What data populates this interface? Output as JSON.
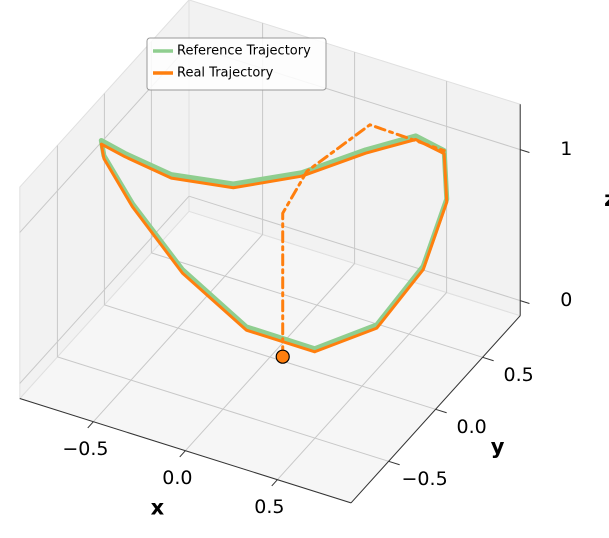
{
  "chart_data": {
    "type": "line3d",
    "xlabel": "x",
    "ylabel": "y",
    "zlabel": "z",
    "xlim": [
      -0.9,
      0.9
    ],
    "ylim": [
      -0.9,
      0.9
    ],
    "zlim": [
      -0.1,
      1.3
    ],
    "xticks": [
      {
        "value": -0.5,
        "label": "−0.5"
      },
      {
        "value": 0,
        "label": "0.0"
      },
      {
        "value": 0.5,
        "label": "0.5"
      }
    ],
    "yticks": [
      {
        "value": -0.5,
        "label": "−0.5"
      },
      {
        "value": 0,
        "label": "0.0"
      },
      {
        "value": 0.5,
        "label": "0.5"
      }
    ],
    "zticks": [
      0,
      1
    ],
    "grid": true,
    "legend": "upper left",
    "series": [
      {
        "name": "Reference Trajectory",
        "color": "#8fce8f",
        "linestyle": "solid",
        "x": [
          0.215,
          -0.079,
          -0.371,
          -0.617,
          -0.78,
          -0.835,
          -0.774,
          -0.605,
          -0.355,
          -0.061,
          0.231,
          0.477,
          0.64,
          0.695,
          0.634,
          0.465,
          0.215
        ],
        "y": [
          0.055,
          -0.097,
          -0.205,
          -0.256,
          -0.24,
          -0.16,
          -0.029,
          0.135,
          0.305,
          0.457,
          0.565,
          0.616,
          0.6,
          0.52,
          0.389,
          0.226,
          0.055
        ],
        "z": [
          0,
          0.137,
          0.478,
          0.856,
          1.1,
          1.124,
          0.972,
          0.783,
          0.7,
          0.783,
          0.972,
          1.124,
          1.1,
          0.856,
          0.478,
          0.137,
          0
        ]
      },
      {
        "name": "Real Trajectory",
        "color": "#ff7f0e",
        "linestyle": "solid",
        "x": [
          0.215,
          -0.079,
          -0.371,
          -0.617,
          -0.78,
          -0.835,
          -0.774,
          -0.605,
          -0.355,
          -0.061,
          0.231,
          0.477,
          0.64,
          0.695,
          0.634,
          0.465,
          0.215
        ],
        "y": [
          0.055,
          -0.097,
          -0.205,
          -0.256,
          -0.24,
          -0.16,
          -0.029,
          0.135,
          0.305,
          0.457,
          0.565,
          0.616,
          0.6,
          0.52,
          0.389,
          0.226,
          0.055
        ],
        "z": [
          -0.02,
          0.115,
          0.455,
          0.835,
          1.08,
          1.1,
          0.95,
          0.76,
          0.675,
          0.76,
          0.95,
          1.1,
          1.08,
          0.835,
          0.455,
          0.115,
          -0.02
        ]
      },
      {
        "color": "#ff7f0e",
        "linestyle": "dashdot",
        "start_marker": true,
        "x": [
          0.11,
          0.11,
          0.11,
          0.15,
          0.285,
          0.64
        ],
        "y": [
          -0.08,
          -0.08,
          -0.08,
          0.1,
          0.505,
          0.6
        ],
        "z": [
          0,
          0.5,
          0.95,
          1.12,
          1.2,
          1.1
        ]
      }
    ]
  }
}
